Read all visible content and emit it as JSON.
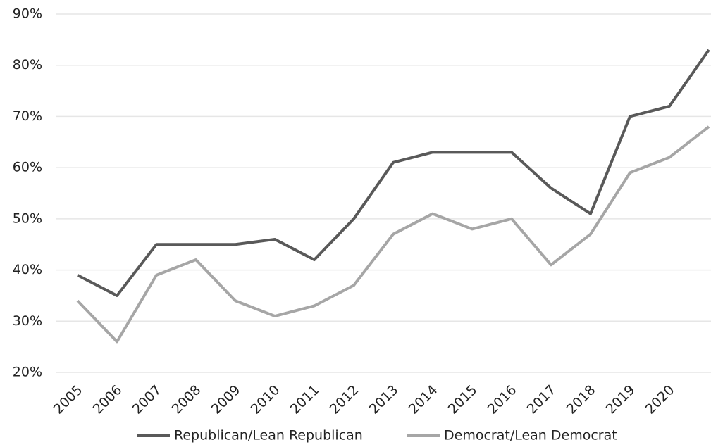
{
  "chart_data": {
    "type": "line",
    "categories": [
      "2005",
      "2006",
      "2007",
      "2008",
      "2009",
      "2010",
      "2011",
      "2012",
      "2013",
      "2014",
      "2015",
      "2016",
      "2017",
      "2018",
      "2019",
      "2020",
      null
    ],
    "series": [
      {
        "name": "Republican/Lean Republican",
        "color": "#595959",
        "values": [
          39,
          35,
          45,
          45,
          45,
          46,
          42,
          50,
          61,
          63,
          63,
          63,
          56,
          51,
          70,
          72,
          83
        ]
      },
      {
        "name": "Democrat/Lean Democrat",
        "color": "#a6a6a6",
        "values": [
          34,
          26,
          39,
          42,
          34,
          31,
          33,
          37,
          47,
          51,
          48,
          50,
          41,
          47,
          59,
          62,
          68
        ]
      }
    ],
    "ylim": [
      20,
      90
    ],
    "yticks": [
      {
        "value": 20,
        "label": "20%"
      },
      {
        "value": 30,
        "label": "30%"
      },
      {
        "value": 40,
        "label": "40%"
      },
      {
        "value": 50,
        "label": "50%"
      },
      {
        "value": 60,
        "label": "60%"
      },
      {
        "value": 70,
        "label": "70%"
      },
      {
        "value": 80,
        "label": "80%"
      },
      {
        "value": 90,
        "label": "90%"
      }
    ],
    "grid": true,
    "legend": "bottom"
  }
}
